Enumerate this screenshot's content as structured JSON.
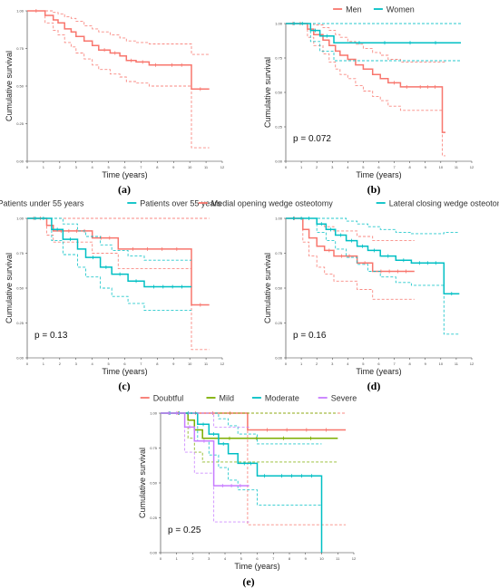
{
  "chart_data": [
    {
      "type": "line",
      "panel_label": "(a)",
      "xlabel": "Time (years)",
      "ylabel": "Cumulative survival",
      "xlim": [
        0,
        12
      ],
      "ylim": [
        0,
        1
      ],
      "xticks": [
        0,
        1,
        2,
        3,
        4,
        5,
        6,
        7,
        8,
        9,
        10,
        11,
        12
      ],
      "yticks": [
        "0.00",
        "0.25",
        "0.50",
        "0.75",
        "1.00"
      ],
      "pvalue": "",
      "legend": [],
      "series": [
        {
          "color": "#f8766d",
          "x": [
            0,
            1.1,
            1.6,
            1.9,
            2.3,
            2.7,
            3.0,
            3.5,
            4.0,
            4.4,
            5.1,
            5.7,
            6.1,
            6.7,
            7.5,
            8.3,
            10.1,
            11.2
          ],
          "y": [
            1.0,
            0.97,
            0.94,
            0.92,
            0.88,
            0.86,
            0.83,
            0.8,
            0.77,
            0.74,
            0.72,
            0.7,
            0.67,
            0.66,
            0.64,
            0.64,
            0.48,
            0.48
          ],
          "ci_upper": [
            1.0,
            1.0,
            0.99,
            0.98,
            0.96,
            0.95,
            0.93,
            0.9,
            0.88,
            0.86,
            0.84,
            0.82,
            0.8,
            0.79,
            0.78,
            0.78,
            0.71,
            0.71
          ],
          "ci_lower": [
            1.0,
            0.92,
            0.87,
            0.84,
            0.79,
            0.76,
            0.72,
            0.68,
            0.64,
            0.61,
            0.58,
            0.56,
            0.53,
            0.52,
            0.5,
            0.5,
            0.09,
            0.09
          ]
        }
      ]
    },
    {
      "type": "line",
      "panel_label": "(b)",
      "xlabel": "Time (years)",
      "ylabel": "Cumulative survival",
      "xlim": [
        0,
        12
      ],
      "ylim": [
        0,
        1
      ],
      "xticks": [
        0,
        1,
        2,
        3,
        4,
        5,
        6,
        7,
        8,
        9,
        10,
        11,
        12
      ],
      "yticks": [
        "0.00",
        "0.25",
        "0.50",
        "0.75",
        "1.00"
      ],
      "pvalue": "p = 0.072",
      "legend": [
        "Men",
        "Women"
      ],
      "series": [
        {
          "name": "Men",
          "color": "#f8766d",
          "x": [
            0,
            1.4,
            1.8,
            2.4,
            2.8,
            3.2,
            3.5,
            4.0,
            4.5,
            5.0,
            5.6,
            6.1,
            6.6,
            7.4,
            8.2,
            10.1,
            10.3
          ],
          "y": [
            1.0,
            0.96,
            0.92,
            0.88,
            0.84,
            0.8,
            0.77,
            0.74,
            0.7,
            0.67,
            0.63,
            0.6,
            0.57,
            0.54,
            0.54,
            0.21,
            0.21
          ],
          "ci_upper": [
            1.0,
            1.0,
            0.99,
            0.97,
            0.95,
            0.92,
            0.9,
            0.87,
            0.85,
            0.82,
            0.79,
            0.77,
            0.74,
            0.72,
            0.72,
            0.72,
            0.72
          ],
          "ci_lower": [
            1.0,
            0.9,
            0.84,
            0.78,
            0.72,
            0.67,
            0.63,
            0.6,
            0.55,
            0.51,
            0.47,
            0.44,
            0.4,
            0.37,
            0.37,
            0.04,
            0.04
          ]
        },
        {
          "name": "Women",
          "color": "#00bfc4",
          "x": [
            0,
            1.6,
            2.2,
            3.1,
            11.3
          ],
          "y": [
            1.0,
            0.95,
            0.91,
            0.86,
            0.86
          ],
          "ci_upper": [
            1.0,
            1.0,
            1.0,
            1.0,
            1.0
          ],
          "ci_lower": [
            1.0,
            0.87,
            0.8,
            0.73,
            0.73
          ]
        }
      ]
    },
    {
      "type": "line",
      "panel_label": "(c)",
      "xlabel": "Time (years)",
      "ylabel": "Cumulative survival",
      "xlim": [
        0,
        12
      ],
      "ylim": [
        0,
        1
      ],
      "xticks": [
        0,
        1,
        2,
        3,
        4,
        5,
        6,
        7,
        8,
        9,
        10,
        11,
        12
      ],
      "yticks": [
        "0.00",
        "0.25",
        "0.50",
        "0.75",
        "1.00"
      ],
      "pvalue": "p = 0.13",
      "legend": [
        "Patients under 55 years",
        "Patients over 55 years"
      ],
      "series": [
        {
          "name": "Patients under 55 years",
          "color": "#f8766d",
          "x": [
            0,
            1.2,
            1.6,
            4.0,
            5.6,
            10.1,
            11.2
          ],
          "y": [
            1.0,
            0.95,
            0.91,
            0.86,
            0.78,
            0.38,
            0.38
          ],
          "ci_upper": [
            1.0,
            1.0,
            1.0,
            1.0,
            1.0,
            1.0,
            1.0
          ],
          "ci_lower": [
            1.0,
            0.88,
            0.83,
            0.75,
            0.64,
            0.06,
            0.06
          ]
        },
        {
          "name": "Patients over 55 years",
          "color": "#00bfc4",
          "x": [
            0,
            1.5,
            2.2,
            3.1,
            3.6,
            4.5,
            5.2,
            6.2,
            7.2,
            10.1
          ],
          "y": [
            1.0,
            0.92,
            0.85,
            0.78,
            0.72,
            0.65,
            0.6,
            0.55,
            0.51,
            0.51
          ],
          "ci_upper": [
            1.0,
            1.0,
            0.96,
            0.91,
            0.87,
            0.81,
            0.77,
            0.73,
            0.7,
            0.7
          ],
          "ci_lower": [
            1.0,
            0.84,
            0.74,
            0.65,
            0.58,
            0.5,
            0.44,
            0.39,
            0.34,
            0.34
          ]
        }
      ]
    },
    {
      "type": "line",
      "panel_label": "(d)",
      "xlabel": "Time (years)",
      "ylabel": "Cumulative survival",
      "xlim": [
        0,
        12
      ],
      "ylim": [
        0,
        1
      ],
      "xticks": [
        0,
        1,
        2,
        3,
        4,
        5,
        6,
        7,
        8,
        9,
        10,
        11,
        12
      ],
      "yticks": [
        "0.00",
        "0.25",
        "0.50",
        "0.75",
        "1.00"
      ],
      "pvalue": "p = 0.16",
      "legend": [
        "Medial opening wedge osteotomy",
        "Lateral closing wedge osteotomy"
      ],
      "series": [
        {
          "name": "Medial opening wedge osteotomy",
          "color": "#f8766d",
          "x": [
            0,
            1.1,
            1.5,
            2.0,
            2.5,
            3.1,
            4.6,
            5.6,
            8.3
          ],
          "y": [
            1.0,
            0.92,
            0.86,
            0.8,
            0.77,
            0.73,
            0.68,
            0.62,
            0.62
          ],
          "ci_upper": [
            1.0,
            1.0,
            1.0,
            0.96,
            0.94,
            0.91,
            0.87,
            0.84,
            0.84
          ],
          "ci_lower": [
            1.0,
            0.83,
            0.73,
            0.65,
            0.6,
            0.55,
            0.49,
            0.42,
            0.42
          ]
        },
        {
          "name": "Lateral closing wedge osteotomy",
          "color": "#00bfc4",
          "x": [
            0,
            2.0,
            2.6,
            3.2,
            3.9,
            4.6,
            5.3,
            6.1,
            7.1,
            8.1,
            10.2,
            11.2
          ],
          "y": [
            1.0,
            0.96,
            0.92,
            0.88,
            0.84,
            0.8,
            0.77,
            0.73,
            0.7,
            0.68,
            0.46,
            0.46
          ],
          "ci_upper": [
            1.0,
            1.0,
            1.0,
            1.0,
            0.98,
            0.96,
            0.94,
            0.92,
            0.9,
            0.89,
            0.9,
            0.9
          ],
          "ci_lower": [
            1.0,
            0.9,
            0.84,
            0.78,
            0.72,
            0.67,
            0.62,
            0.58,
            0.54,
            0.52,
            0.17,
            0.17
          ]
        }
      ]
    },
    {
      "type": "line",
      "panel_label": "(e)",
      "xlabel": "Time (years)",
      "ylabel": "Cumulative survival",
      "xlim": [
        0,
        12
      ],
      "ylim": [
        0,
        1
      ],
      "xticks": [
        0,
        1,
        2,
        3,
        4,
        5,
        6,
        7,
        8,
        9,
        10,
        11,
        12
      ],
      "yticks": [
        "0.00",
        "0.25",
        "0.50",
        "0.75",
        "1.00"
      ],
      "pvalue": "p = 0.25",
      "legend": [
        "Doubtful",
        "Mild",
        "Moderate",
        "Severe"
      ],
      "series": [
        {
          "name": "Doubtful",
          "color": "#f8766d",
          "x": [
            0,
            5.4,
            11.5
          ],
          "y": [
            1.0,
            0.88,
            0.88
          ],
          "ci_upper": [
            1.0,
            1.0,
            1.0
          ],
          "ci_lower": [
            1.0,
            0.2,
            0.2
          ]
        },
        {
          "name": "Mild",
          "color": "#7cae00",
          "x": [
            0,
            1.7,
            2.1,
            2.6,
            11.0
          ],
          "y": [
            1.0,
            0.95,
            0.88,
            0.82,
            0.82
          ],
          "ci_upper": [
            1.0,
            1.0,
            1.0,
            1.0,
            1.0
          ],
          "ci_lower": [
            1.0,
            0.82,
            0.72,
            0.65,
            0.65
          ]
        },
        {
          "name": "Moderate",
          "color": "#00bfc4",
          "x": [
            0,
            2.3,
            3.0,
            3.6,
            4.2,
            4.8,
            6.0,
            6.9,
            10.0
          ],
          "y": [
            1.0,
            0.92,
            0.85,
            0.78,
            0.71,
            0.64,
            0.55,
            0.55,
            0.0
          ],
          "ci_upper": [
            1.0,
            1.0,
            1.0,
            0.96,
            0.91,
            0.85,
            0.78,
            0.78,
            0.78
          ],
          "ci_lower": [
            1.0,
            0.8,
            0.7,
            0.61,
            0.52,
            0.45,
            0.34,
            0.34,
            0.0
          ]
        },
        {
          "name": "Severe",
          "color": "#c77cff",
          "x": [
            0,
            1.5,
            2.1,
            3.3,
            5.5
          ],
          "y": [
            1.0,
            0.9,
            0.8,
            0.48,
            0.48
          ],
          "ci_upper": [
            1.0,
            1.0,
            1.0,
            0.9,
            0.9
          ],
          "ci_lower": [
            1.0,
            0.72,
            0.57,
            0.22,
            0.22
          ]
        }
      ]
    }
  ]
}
